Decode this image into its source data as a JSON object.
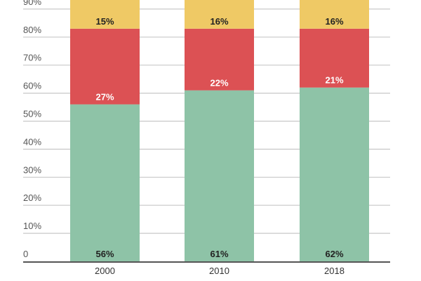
{
  "chart_data": {
    "type": "bar",
    "stacked": true,
    "categories": [
      "2000",
      "2010",
      "2018"
    ],
    "series": [
      {
        "values": [
          56,
          61,
          62
        ],
        "labels": [
          "56%",
          "61%",
          "62%"
        ],
        "color": "#8ec3a7",
        "label_color": "#222222"
      },
      {
        "values": [
          27,
          22,
          21
        ],
        "labels": [
          "27%",
          "22%",
          "21%"
        ],
        "color": "#dc5154",
        "label_color": "#ffffff"
      },
      {
        "values": [
          15,
          16,
          16
        ],
        "labels": [
          "15%",
          "16%",
          "16%"
        ],
        "color": "#efc965",
        "label_color": "#222222"
      }
    ],
    "y_ticks": [
      "0",
      "10%",
      "20%",
      "30%",
      "40%",
      "50%",
      "60%",
      "70%",
      "80%",
      "90%"
    ],
    "y_tick_values": [
      0,
      10,
      20,
      30,
      40,
      50,
      60,
      70,
      80,
      90
    ],
    "ylim": [
      0,
      100
    ],
    "grid": true,
    "gridline_color": "#c8c8c8",
    "axis_color": "#555555"
  }
}
